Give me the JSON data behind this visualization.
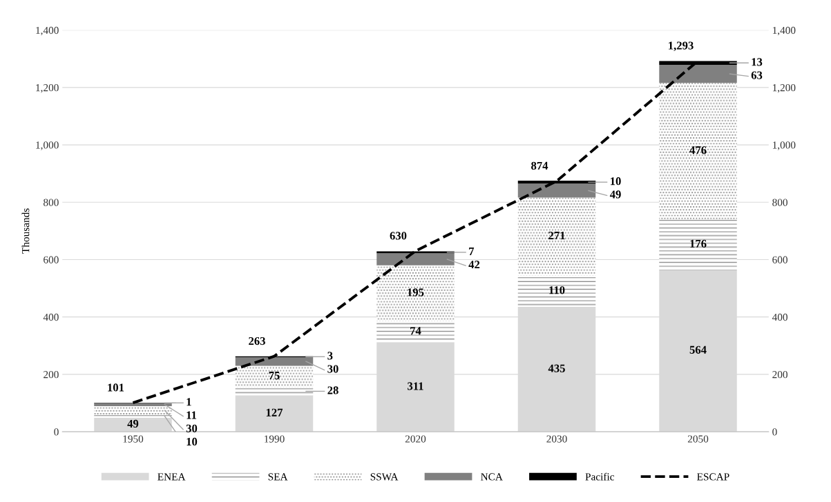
{
  "chart_data": {
    "type": "bar",
    "stacked": true,
    "ylabel": "Thousands",
    "categories": [
      "1950",
      "1990",
      "2020",
      "2030",
      "2050"
    ],
    "series": [
      {
        "name": "ENEA",
        "color": "#d9d9d9",
        "values": [
          49,
          127,
          311,
          435,
          564
        ]
      },
      {
        "name": "SEA",
        "color": "#ffffff",
        "values": [
          10,
          28,
          74,
          110,
          176
        ]
      },
      {
        "name": "SSWA",
        "color": "#ffffff",
        "values": [
          30,
          75,
          195,
          271,
          476
        ]
      },
      {
        "name": "NCA",
        "color": "#808080",
        "values": [
          11,
          30,
          42,
          49,
          63
        ]
      },
      {
        "name": "Pacific",
        "color": "#000000",
        "values": [
          1,
          3,
          7,
          10,
          13
        ]
      },
      {
        "name": "ESCAP",
        "type": "line",
        "color": "#000000",
        "line_style": "dashed",
        "marker": "none",
        "values": [
          101,
          263,
          630,
          874,
          1293
        ],
        "value_labels": [
          "101",
          "263",
          "630",
          "874",
          "1,293"
        ]
      }
    ],
    "data_labels": true,
    "ylim": [
      0,
      1400
    ],
    "yticks": [
      0,
      200,
      400,
      600,
      800,
      {
        "value": 1000,
        "label": "1,000"
      },
      {
        "value": 1200,
        "label": "1,200"
      },
      {
        "value": 1400,
        "label": "1,400"
      }
    ],
    "y2lim": [
      0,
      1400
    ],
    "y2ticks": [
      0,
      200,
      400,
      600,
      800,
      {
        "value": 1000,
        "label": "1,000"
      },
      {
        "value": 1200,
        "label": "1,200"
      },
      {
        "value": 1400,
        "label": "1,400"
      }
    ],
    "grid": "y",
    "legend": "bottom"
  }
}
